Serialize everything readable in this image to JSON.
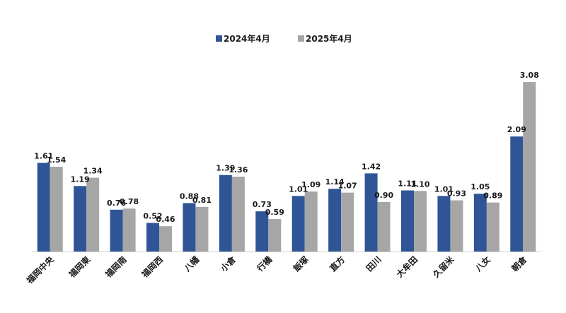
{
  "chart_data": {
    "type": "bar",
    "title": "",
    "xlabel": "",
    "ylabel": "",
    "ylim": [
      0,
      3.5
    ],
    "grid": false,
    "legend_position": "top-center",
    "categories": [
      "福岡中央",
      "福岡東",
      "福岡南",
      "福岡西",
      "八幡",
      "小倉",
      "行橋",
      "飯塚",
      "直方",
      "田川",
      "大牟田",
      "久留米",
      "八女",
      "朝倉"
    ],
    "series": [
      {
        "name": "2024年4月",
        "color": "#2F5597",
        "values": [
          1.61,
          1.19,
          0.76,
          0.52,
          0.88,
          1.39,
          0.73,
          1.01,
          1.14,
          1.42,
          1.11,
          1.01,
          1.05,
          2.09
        ],
        "labels": [
          "1.61",
          "1.19",
          "0.76",
          "0.52",
          "0.88",
          "1.39",
          "0.73",
          "1.01",
          "1.14",
          "1.42",
          "1.11",
          "1.01",
          "1.05",
          "2.09"
        ]
      },
      {
        "name": "2025年4月",
        "color": "#A6A6A6",
        "values": [
          1.54,
          1.34,
          0.78,
          0.46,
          0.81,
          1.36,
          0.59,
          1.09,
          1.07,
          0.9,
          1.1,
          0.93,
          0.89,
          3.08
        ],
        "labels": [
          "1.54",
          "1.34",
          "0.78",
          "0.46",
          "0.81",
          "1.36",
          "0.59",
          "1.09",
          "1.07",
          "0.90",
          "1.10",
          "0.93",
          "0.89",
          "3.08"
        ]
      }
    ]
  }
}
